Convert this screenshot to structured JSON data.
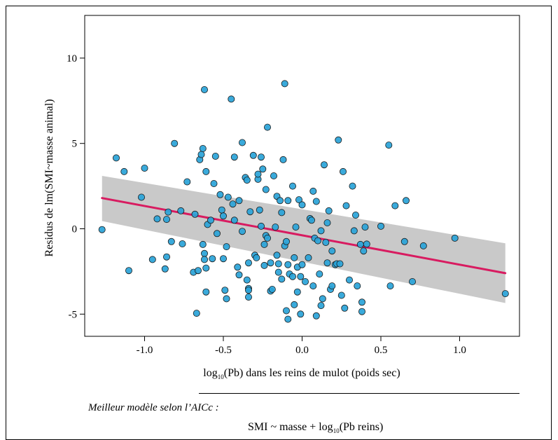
{
  "chart_data": {
    "type": "scatter",
    "title": "",
    "xlabel": {
      "prefix": "log",
      "sub": "10",
      "suffix": "(Pb) dans les reins de mulot (poids sec)"
    },
    "ylabel": "Residus de lm(SMI~masse animal)",
    "xlim": [
      -1.38,
      1.38
    ],
    "ylim": [
      -6.3,
      12.5
    ],
    "x_ticks": [
      -1.0,
      -0.5,
      0.0,
      0.5,
      1.0
    ],
    "x_tick_labels": [
      "-1.0",
      "-0.5",
      "0.0",
      "0.5",
      "1.0"
    ],
    "y_ticks": [
      -5,
      0,
      5,
      10
    ],
    "y_tick_labels": [
      "-5",
      "0",
      "5",
      "10"
    ],
    "grid": false,
    "colors": {
      "points": "#29a3d8",
      "point_stroke": "#1a1a1a",
      "fit_line": "#d81b60",
      "ci_band": "#c9c9c9"
    },
    "fit": {
      "x": [
        -1.27,
        1.29
      ],
      "y": [
        1.8,
        -2.6
      ]
    },
    "ci_band": {
      "x": [
        -1.27,
        1.29
      ],
      "upper": [
        3.1,
        -0.85
      ],
      "lower": [
        0.45,
        -4.35
      ]
    },
    "points": [
      [
        -1.27,
        -0.05
      ],
      [
        -1.18,
        4.15
      ],
      [
        -1.13,
        3.35
      ],
      [
        -1.1,
        -2.45
      ],
      [
        -1.0,
        3.55
      ],
      [
        -0.95,
        -1.8
      ],
      [
        -1.02,
        1.85
      ],
      [
        -0.92,
        0.58
      ],
      [
        -0.87,
        -2.35
      ],
      [
        -0.86,
        -1.65
      ],
      [
        -0.85,
        0.98
      ],
      [
        -0.86,
        0.55
      ],
      [
        -0.83,
        -0.75
      ],
      [
        -0.81,
        5.0
      ],
      [
        -0.77,
        1.05
      ],
      [
        -0.76,
        -0.88
      ],
      [
        -0.73,
        2.75
      ],
      [
        -0.69,
        -2.55
      ],
      [
        -0.68,
        0.85
      ],
      [
        -0.67,
        -4.95
      ],
      [
        -0.66,
        -2.45
      ],
      [
        -0.65,
        4.05
      ],
      [
        -0.64,
        4.35
      ],
      [
        -0.63,
        4.7
      ],
      [
        -0.63,
        -0.92
      ],
      [
        -0.62,
        -1.45
      ],
      [
        -0.61,
        -2.3
      ],
      [
        -0.62,
        -1.8
      ],
      [
        -0.62,
        8.15
      ],
      [
        -0.61,
        3.35
      ],
      [
        -0.61,
        -3.7
      ],
      [
        -0.6,
        0.25
      ],
      [
        -0.58,
        0.5
      ],
      [
        -0.57,
        -1.75
      ],
      [
        -0.56,
        2.65
      ],
      [
        -0.55,
        4.25
      ],
      [
        -0.54,
        -0.28
      ],
      [
        -0.52,
        2.0
      ],
      [
        -0.51,
        1.1
      ],
      [
        -0.5,
        0.75
      ],
      [
        -0.5,
        -1.75
      ],
      [
        -0.49,
        -3.6
      ],
      [
        -0.48,
        -4.1
      ],
      [
        -0.48,
        -1.05
      ],
      [
        -0.47,
        1.85
      ],
      [
        -0.45,
        7.6
      ],
      [
        -0.43,
        4.2
      ],
      [
        -0.44,
        1.45
      ],
      [
        -0.43,
        0.5
      ],
      [
        -0.41,
        -2.25
      ],
      [
        -0.4,
        1.65
      ],
      [
        -0.4,
        -2.7
      ],
      [
        -0.38,
        -0.15
      ],
      [
        -0.38,
        5.05
      ],
      [
        -0.36,
        3.0
      ],
      [
        -0.35,
        2.85
      ],
      [
        -0.35,
        -3.0
      ],
      [
        -0.34,
        -2.0
      ],
      [
        -0.34,
        -3.5
      ],
      [
        -0.34,
        -3.6
      ],
      [
        -0.34,
        -4.0
      ],
      [
        -0.33,
        1.0
      ],
      [
        -0.31,
        4.3
      ],
      [
        -0.3,
        -1.55
      ],
      [
        -0.29,
        -1.7
      ],
      [
        -0.28,
        2.9
      ],
      [
        -0.28,
        3.2
      ],
      [
        -0.27,
        1.1
      ],
      [
        -0.26,
        0.15
      ],
      [
        -0.26,
        4.2
      ],
      [
        -0.25,
        3.5
      ],
      [
        -0.24,
        -0.92
      ],
      [
        -0.24,
        -2.15
      ],
      [
        -0.23,
        -0.4
      ],
      [
        -0.22,
        5.95
      ],
      [
        -0.23,
        2.3
      ],
      [
        -0.22,
        -0.55
      ],
      [
        -0.2,
        -2.0
      ],
      [
        -0.2,
        -3.65
      ],
      [
        -0.19,
        -3.55
      ],
      [
        -0.18,
        3.1
      ],
      [
        -0.17,
        0.1
      ],
      [
        -0.16,
        1.9
      ],
      [
        -0.16,
        -1.55
      ],
      [
        -0.15,
        -2.05
      ],
      [
        -0.15,
        -2.55
      ],
      [
        -0.14,
        1.65
      ],
      [
        -0.13,
        0.95
      ],
      [
        -0.13,
        -2.95
      ],
      [
        -0.12,
        4.05
      ],
      [
        -0.11,
        8.5
      ],
      [
        -0.11,
        -1.0
      ],
      [
        -0.1,
        -0.75
      ],
      [
        -0.1,
        -4.8
      ],
      [
        -0.09,
        1.65
      ],
      [
        -0.09,
        -2.1
      ],
      [
        -0.09,
        -5.3
      ],
      [
        -0.08,
        -2.65
      ],
      [
        -0.06,
        2.5
      ],
      [
        -0.06,
        -2.8
      ],
      [
        -0.05,
        -4.45
      ],
      [
        -0.05,
        -1.7
      ],
      [
        -0.04,
        0.1
      ],
      [
        -0.03,
        -2.25
      ],
      [
        -0.03,
        -3.7
      ],
      [
        -0.02,
        1.7
      ],
      [
        -0.01,
        -2.8
      ],
      [
        -0.01,
        -5.0
      ],
      [
        0.0,
        -2.1
      ],
      [
        0.0,
        1.4
      ],
      [
        0.02,
        -3.1
      ],
      [
        0.04,
        -1.7
      ],
      [
        0.05,
        0.6
      ],
      [
        0.06,
        0.5
      ],
      [
        0.07,
        2.2
      ],
      [
        0.07,
        -3.35
      ],
      [
        0.08,
        -0.55
      ],
      [
        0.09,
        -5.1
      ],
      [
        0.09,
        1.6
      ],
      [
        0.1,
        -0.7
      ],
      [
        0.11,
        -2.65
      ],
      [
        0.12,
        -4.5
      ],
      [
        0.12,
        -0.12
      ],
      [
        0.13,
        -4.1
      ],
      [
        0.14,
        3.75
      ],
      [
        0.15,
        -0.8
      ],
      [
        0.16,
        0.35
      ],
      [
        0.16,
        -2.0
      ],
      [
        0.17,
        1.05
      ],
      [
        0.18,
        -3.55
      ],
      [
        0.19,
        -1.3
      ],
      [
        0.19,
        -3.35
      ],
      [
        0.21,
        -2.1
      ],
      [
        0.22,
        -2.05
      ],
      [
        0.23,
        5.2
      ],
      [
        0.24,
        -2.05
      ],
      [
        0.25,
        -3.9
      ],
      [
        0.26,
        3.35
      ],
      [
        0.27,
        -4.65
      ],
      [
        0.28,
        1.35
      ],
      [
        0.3,
        -3.0
      ],
      [
        0.32,
        2.5
      ],
      [
        0.33,
        -0.12
      ],
      [
        0.34,
        0.8
      ],
      [
        0.35,
        -3.35
      ],
      [
        0.37,
        -0.92
      ],
      [
        0.38,
        -4.3
      ],
      [
        0.38,
        -4.85
      ],
      [
        0.39,
        -1.3
      ],
      [
        0.4,
        0.1
      ],
      [
        0.41,
        -0.9
      ],
      [
        0.5,
        0.15
      ],
      [
        0.55,
        4.9
      ],
      [
        0.56,
        -3.35
      ],
      [
        0.59,
        1.35
      ],
      [
        0.65,
        -0.75
      ],
      [
        0.66,
        1.65
      ],
      [
        0.7,
        -3.1
      ],
      [
        0.77,
        -1.0
      ],
      [
        0.97,
        -0.55
      ],
      [
        1.29,
        -3.8
      ]
    ]
  },
  "caption": {
    "title": "Meilleur modèle selon l’AICc :",
    "formula_prefix": "SMI ~ masse + log",
    "formula_sub": "10",
    "formula_suffix": "(Pb reins)"
  }
}
